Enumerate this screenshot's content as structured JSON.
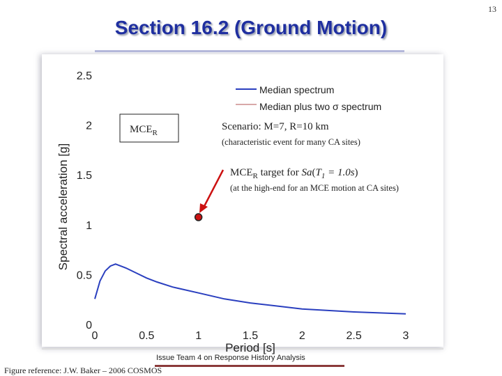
{
  "page_number": "13",
  "slide_title": "Section 16.2 (Ground Motion)",
  "footer_text": "Issue Team 4 on Response History Analysis",
  "figure_reference": "Figure reference: J.W. Baker – 2006 COSMOS",
  "colors": {
    "title": "#1f2fa0",
    "median": "#2a3fbf",
    "plus_two_sigma": "#b05050",
    "target_marker": "#cc1111",
    "arrow": "#cc1111"
  },
  "chart_data": {
    "type": "line",
    "xlabel": "Period [s]",
    "ylabel": "Spectral acceleration [g]",
    "xlim": [
      0,
      3
    ],
    "ylim": [
      0,
      2.5
    ],
    "x_ticks": [
      "0",
      "0.5",
      "1",
      "1.5",
      "2",
      "2.5",
      "3"
    ],
    "y_ticks": [
      "0",
      "0.5",
      "1",
      "1.5",
      "2",
      "2.5"
    ],
    "grid": false,
    "legend_position": "top-right",
    "series": [
      {
        "name": "Median spectrum",
        "x": [
          0.0,
          0.05,
          0.1,
          0.15,
          0.2,
          0.25,
          0.3,
          0.4,
          0.5,
          0.6,
          0.75,
          1.0,
          1.25,
          1.5,
          1.75,
          2.0,
          2.5,
          3.0
        ],
        "y": [
          0.27,
          0.45,
          0.55,
          0.6,
          0.62,
          0.6,
          0.58,
          0.53,
          0.48,
          0.44,
          0.39,
          0.33,
          0.27,
          0.23,
          0.2,
          0.17,
          0.14,
          0.12
        ]
      },
      {
        "name": "Median plus two σ spectrum",
        "x": [],
        "y": []
      }
    ],
    "target_point": {
      "x": 1.0,
      "y": 1.09
    },
    "annotations": {
      "mcer_main": "MCE",
      "mcer_sub": "R",
      "scenario": "Scenario: M=7, R=10 km",
      "scenario_note": "(characteristic event for many CA sites)",
      "target_pre": "MCE",
      "target_sub": "R",
      "target_mid": " target for ",
      "target_sa": "Sa",
      "target_paren_open": "(",
      "target_t": "T",
      "target_t_sub": "1",
      "target_eq": " = 1.0s",
      "target_paren_close": ")",
      "target_note": "(at the high-end for an MCE motion at CA sites)"
    }
  }
}
